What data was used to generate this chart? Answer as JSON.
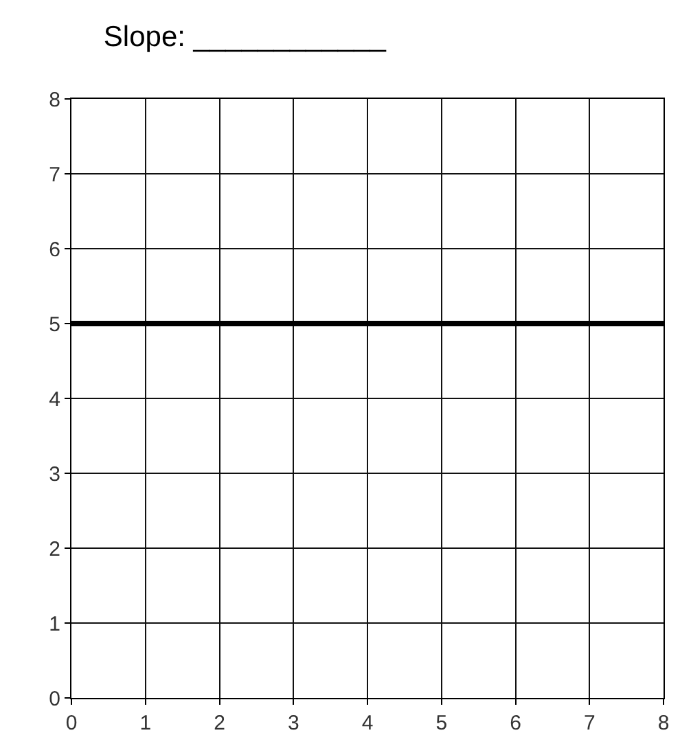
{
  "chart_data": {
    "type": "line",
    "title": "Slope: ____________",
    "x": [
      0,
      8
    ],
    "series": [
      {
        "color": "#000000",
        "values": [
          5,
          5
        ]
      }
    ],
    "xlim": [
      0,
      8
    ],
    "ylim": [
      0,
      8
    ],
    "xticks": [
      0,
      1,
      2,
      3,
      4,
      5,
      6,
      7,
      8
    ],
    "yticks": [
      0,
      1,
      2,
      3,
      4,
      5,
      6,
      7,
      8
    ],
    "grid": true,
    "marker": "none",
    "line_style": "solid"
  }
}
